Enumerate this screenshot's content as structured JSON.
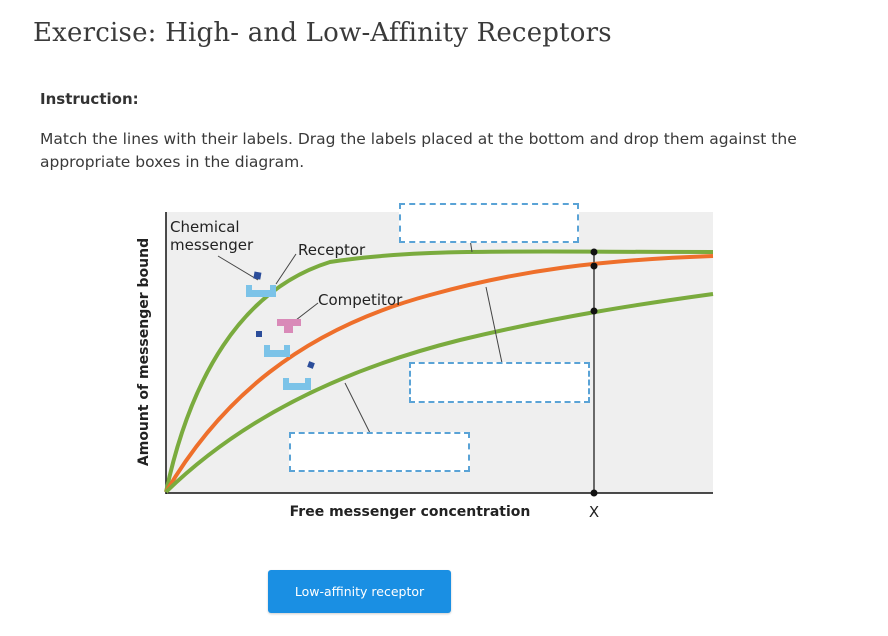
{
  "page": {
    "title": "Exercise: High- and Low-Affinity Receptors",
    "instruction_heading": "Instruction:",
    "instruction_text": "Match the lines with their labels. Drag the labels placed at the bottom and drop them against the appropriate boxes in the diagram."
  },
  "diagram": {
    "y_axis_label": "Amount of messenger bound",
    "x_axis_label": "Free messenger concentration",
    "x_marker_label": "X",
    "labels": {
      "chemical_messenger_line1": "Chemical",
      "chemical_messenger_line2": "messenger",
      "receptor": "Receptor",
      "competitor": "Competitor"
    },
    "colors": {
      "green_curve": "#7aab3e",
      "orange_curve": "#ee6f2b",
      "receptor_shape": "#7cc3e8",
      "competitor_shape": "#d98ab8",
      "messenger_dot": "#2b4d9a",
      "drop_box_border": "#5aa3d6"
    }
  },
  "drag_labels": [
    {
      "text": "Low-affinity receptor"
    }
  ]
}
